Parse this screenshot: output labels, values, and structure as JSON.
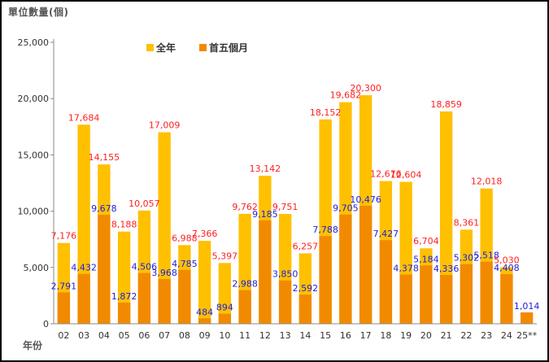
{
  "chart_data": {
    "type": "bar",
    "title": "單位數量(個)",
    "xlabel": "年份",
    "ylabel": "",
    "ylim": [
      0,
      25000
    ],
    "yticks": [
      "0",
      "5,000",
      "10,000",
      "15,000",
      "20,000",
      "25,000"
    ],
    "grid": false,
    "legend_position": "top-left",
    "categories": [
      "02",
      "03",
      "04",
      "05",
      "06",
      "07",
      "08",
      "09",
      "10",
      "11",
      "12",
      "13",
      "14",
      "15",
      "16",
      "17",
      "18",
      "19",
      "20",
      "21",
      "22",
      "23",
      "24",
      "25**"
    ],
    "series": [
      {
        "name": "全年",
        "color": "#FFC000",
        "label_color": "#FF2020",
        "values": [
          7176,
          17684,
          14155,
          8188,
          10057,
          17009,
          6988,
          7366,
          5397,
          9762,
          13142,
          9751,
          6257,
          18152,
          19682,
          20300,
          12676,
          12604,
          6704,
          18859,
          8361,
          12018,
          5030,
          null
        ],
        "labels": [
          "7,176",
          "17,684",
          "14,155",
          "8,188",
          "10,057",
          "17,009",
          "6,988",
          "7,366",
          "5,397",
          "9,762",
          "13,142",
          "9,751",
          "6,257",
          "18,152",
          "19,682",
          "20,300",
          "12,676",
          "12,604",
          "6,704",
          "18,859",
          "8,361",
          "12,018",
          "5,030",
          ""
        ]
      },
      {
        "name": "首五個月",
        "color": "#F28A00",
        "label_color": "#2020DD",
        "values": [
          2791,
          4432,
          9678,
          1872,
          4506,
          3968,
          4785,
          484,
          894,
          2988,
          9185,
          3850,
          2592,
          7788,
          9705,
          10476,
          7427,
          4378,
          5184,
          4336,
          5302,
          5518,
          4408,
          1014
        ],
        "labels": [
          "2,791",
          "4,432",
          "9,678",
          "1,872",
          "4,506",
          "3,968",
          "4,785",
          "484",
          "894",
          "2,988",
          "9,185",
          "3,850",
          "2,592",
          "7,788",
          "9,705",
          "10,476",
          "7,427",
          "4,378",
          "5,184",
          "4,336",
          "5,302",
          "5,518",
          "4,408",
          "1,014"
        ]
      }
    ]
  }
}
